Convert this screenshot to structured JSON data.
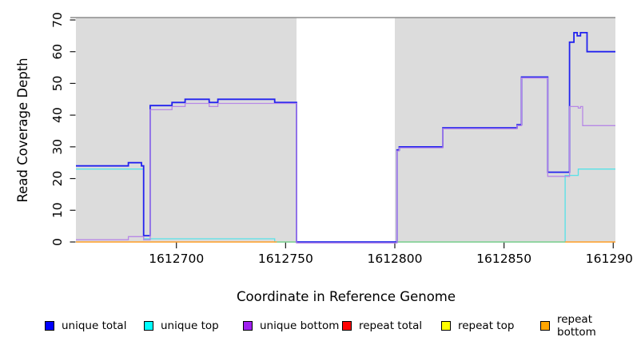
{
  "chart_data": {
    "type": "line",
    "step": true,
    "title": "",
    "xlabel": "Coordinate in Reference Genome",
    "ylabel": "Read Coverage Depth",
    "xlim": [
      1612654,
      1612901
    ],
    "ylim": [
      0,
      70
    ],
    "x_ticks": [
      1612700,
      1612750,
      1612800,
      1612850,
      1612900
    ],
    "y_ticks": [
      0,
      10,
      20,
      30,
      40,
      50,
      60,
      70
    ],
    "grid": false,
    "legend_position": "bottom",
    "plot_background_color": "#ffffff",
    "background_regions": [
      {
        "name": "covered-region-left",
        "x0": 1612654,
        "x1": 1612755,
        "color": "#DCDCDC"
      },
      {
        "name": "zero-coverage-gap",
        "x0": 1612755,
        "x1": 1612800,
        "color": "#FFFFFF"
      },
      {
        "name": "covered-region-right",
        "x0": 1612800,
        "x1": 1612901,
        "color": "#DCDCDC"
      }
    ],
    "series": [
      {
        "name": "unique total",
        "color": "#2222EE",
        "z": 3,
        "yoffset": 0,
        "width": 1.8,
        "points": [
          [
            1612654,
            24
          ],
          [
            1612678,
            25
          ],
          [
            1612684,
            24
          ],
          [
            1612685,
            2
          ],
          [
            1612688,
            43
          ],
          [
            1612698,
            44
          ],
          [
            1612704,
            45
          ],
          [
            1612715,
            44
          ],
          [
            1612719,
            45
          ],
          [
            1612745,
            44
          ],
          [
            1612755,
            0
          ],
          [
            1612801,
            29
          ],
          [
            1612802,
            30
          ],
          [
            1612822,
            36
          ],
          [
            1612856,
            37
          ],
          [
            1612858,
            52
          ],
          [
            1612870,
            22
          ],
          [
            1612880,
            63
          ],
          [
            1612882,
            66
          ],
          [
            1612883.5,
            65
          ],
          [
            1612885,
            66
          ],
          [
            1612888,
            60
          ],
          [
            1612901,
            60
          ]
        ]
      },
      {
        "name": "unique top",
        "color": "#55E2E8",
        "z": 1,
        "yoffset": 0,
        "width": 1.3,
        "points": [
          [
            1612654,
            23
          ],
          [
            1612685,
            1
          ],
          [
            1612745,
            0
          ],
          [
            1612878,
            21
          ],
          [
            1612884,
            23
          ],
          [
            1612901,
            23
          ]
        ]
      },
      {
        "name": "unique bottom",
        "color": "#B788E6",
        "z": 4,
        "yoffset": 1.2,
        "width": 1.3,
        "points": [
          [
            1612654,
            1
          ],
          [
            1612678,
            2
          ],
          [
            1612685,
            1
          ],
          [
            1612688,
            42
          ],
          [
            1612698,
            43
          ],
          [
            1612704,
            44
          ],
          [
            1612715,
            43
          ],
          [
            1612719,
            44
          ],
          [
            1612755,
            0
          ],
          [
            1612801,
            29
          ],
          [
            1612802,
            30
          ],
          [
            1612822,
            36
          ],
          [
            1612856,
            37
          ],
          [
            1612858,
            52
          ],
          [
            1612870,
            21
          ],
          [
            1612880,
            43
          ],
          [
            1612884,
            42.5
          ],
          [
            1612885,
            43
          ],
          [
            1612886,
            37
          ],
          [
            1612901,
            37
          ]
        ]
      },
      {
        "name": "repeat total",
        "color": "#FF0000",
        "z": 0,
        "yoffset": 0,
        "width": 1.2,
        "visible": false,
        "points": [
          [
            1612654,
            0
          ],
          [
            1612901,
            0
          ]
        ]
      },
      {
        "name": "repeat top",
        "color": "#E8E800",
        "z": 0,
        "yoffset": 0,
        "width": 1.2,
        "visible": false,
        "points": [
          [
            1612654,
            0
          ],
          [
            1612901,
            0
          ]
        ]
      }
    ],
    "baseline_segments": [
      {
        "name": "repeat-bottom-left",
        "color": "#FF9D26",
        "z": 2,
        "x0": 1612654,
        "x1": 1612746,
        "value": 0,
        "width": 1.6
      },
      {
        "name": "top-strand-blend",
        "color": "#82CE8C",
        "z": 2,
        "x0": 1612746,
        "x1": 1612878,
        "value": 0,
        "width": 1.4
      },
      {
        "name": "repeat-bottom-right",
        "color": "#FF9D26",
        "z": 2,
        "x0": 1612878,
        "x1": 1612901,
        "value": 0,
        "width": 1.6
      }
    ]
  },
  "legend": {
    "items": [
      {
        "label": "unique total",
        "color": "#0000FF"
      },
      {
        "label": "unique top",
        "color": "#00FFFF"
      },
      {
        "label": "unique bottom",
        "color": "#A020F0"
      },
      {
        "label": "repeat total",
        "color": "#FF0000"
      },
      {
        "label": "repeat top",
        "color": "#FFFF00"
      },
      {
        "label": "repeat bottom",
        "color": "#FFA500"
      }
    ]
  },
  "style": {
    "top_border_color": "#8C8C8C",
    "tick_color": "#1A1A1A"
  }
}
